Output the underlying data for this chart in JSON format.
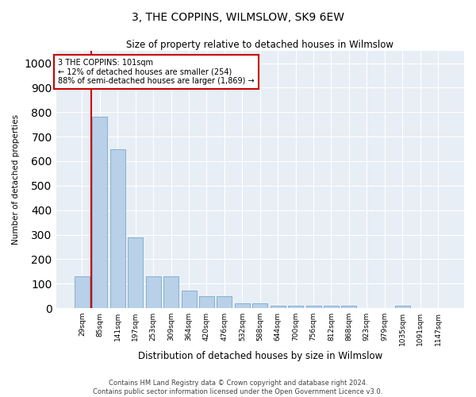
{
  "title": "3, THE COPPINS, WILMSLOW, SK9 6EW",
  "subtitle": "Size of property relative to detached houses in Wilmslow",
  "xlabel": "Distribution of detached houses by size in Wilmslow",
  "ylabel": "Number of detached properties",
  "bar_labels": [
    "29sqm",
    "85sqm",
    "141sqm",
    "197sqm",
    "253sqm",
    "309sqm",
    "364sqm",
    "420sqm",
    "476sqm",
    "532sqm",
    "588sqm",
    "644sqm",
    "700sqm",
    "756sqm",
    "812sqm",
    "868sqm",
    "923sqm",
    "979sqm",
    "1035sqm",
    "1091sqm",
    "1147sqm"
  ],
  "bar_values": [
    130,
    780,
    650,
    290,
    130,
    130,
    70,
    50,
    50,
    20,
    20,
    10,
    10,
    10,
    10,
    10,
    0,
    0,
    10,
    0,
    0
  ],
  "bar_color": "#b8d0e8",
  "bar_edge_color": "#7aaac8",
  "annotation_line1": "3 THE COPPINS: 101sqm",
  "annotation_line2": "← 12% of detached houses are smaller (254)",
  "annotation_line3": "88% of semi-detached houses are larger (1,869) →",
  "vline_x_pos": 1.5,
  "ylim": [
    0,
    1050
  ],
  "yticks": [
    0,
    100,
    200,
    300,
    400,
    500,
    600,
    700,
    800,
    900,
    1000
  ],
  "background_color": "#e8eef5",
  "grid_color": "#ffffff",
  "annotation_box_color": "#ffffff",
  "annotation_box_edge": "#cc0000",
  "vline_color": "#cc0000",
  "footer_line1": "Contains HM Land Registry data © Crown copyright and database right 2024.",
  "footer_line2": "Contains public sector information licensed under the Open Government Licence v3.0."
}
